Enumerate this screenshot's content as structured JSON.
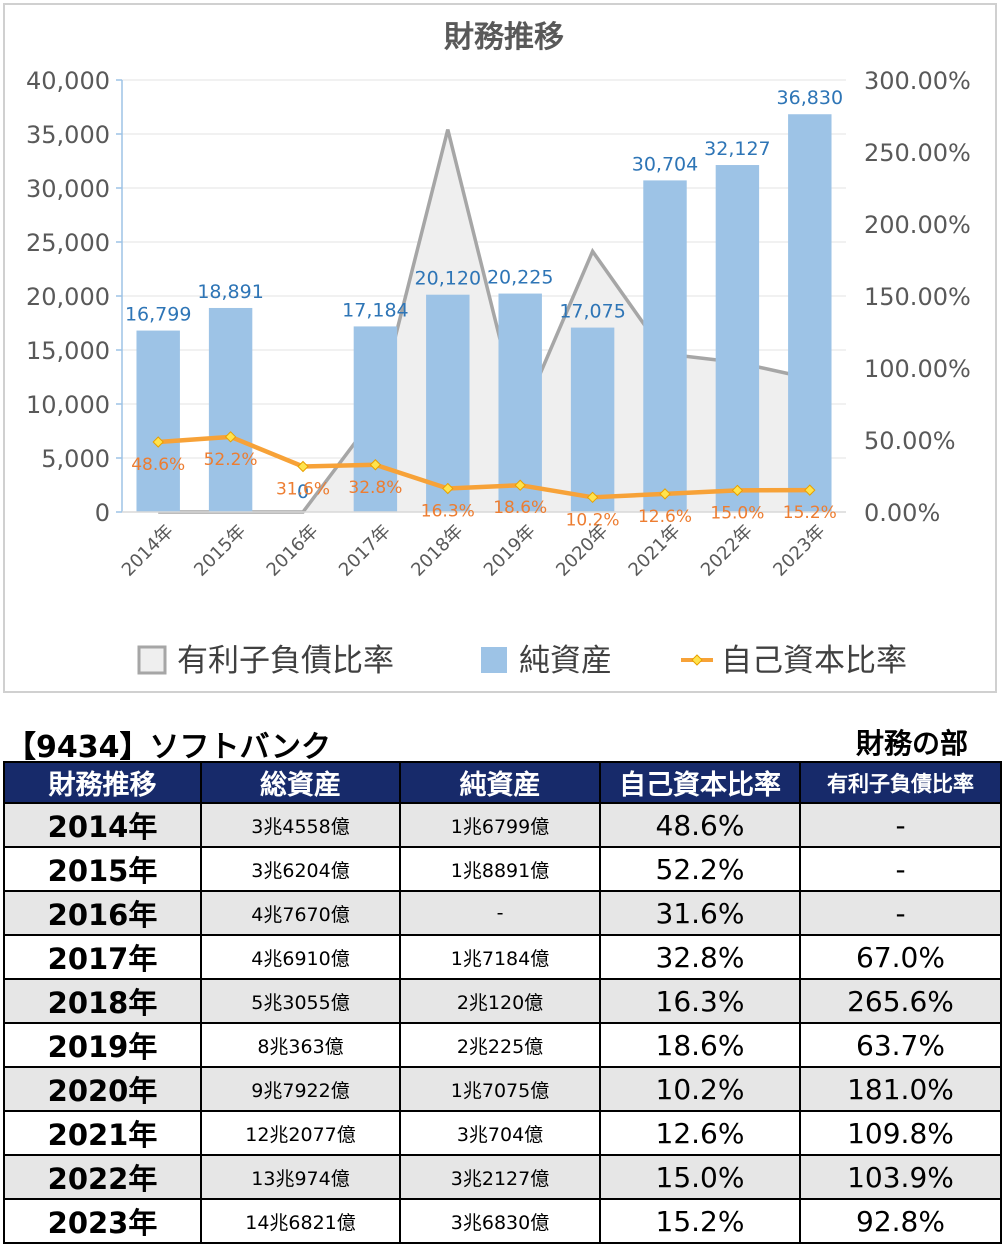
{
  "chart_data": {
    "type": "bar",
    "title": "財務推移",
    "categories": [
      "2014年",
      "2015年",
      "2016年",
      "2017年",
      "2018年",
      "2019年",
      "2020年",
      "2021年",
      "2022年",
      "2023年"
    ],
    "y_left": {
      "ticks": [
        "40,000",
        "35,000",
        "30,000",
        "25,000",
        "20,000",
        "15,000",
        "10,000",
        "5,000",
        "0"
      ],
      "range": [
        0,
        40000
      ]
    },
    "y_right": {
      "ticks": [
        "300.00%",
        "250.00%",
        "200.00%",
        "150.00%",
        "100.00%",
        "50.00%",
        "0.00%"
      ],
      "range": [
        0,
        3.0
      ]
    },
    "series": [
      {
        "name": "有利子負債比率",
        "type": "area",
        "axis": "right",
        "color": "#a6a6a6",
        "fill": "#efefef",
        "values": [
          0,
          0,
          0,
          0.67,
          2.656,
          0.637,
          1.81,
          1.098,
          1.039,
          0.928
        ]
      },
      {
        "name": "純資産",
        "type": "bar",
        "axis": "left",
        "color": "#9dc3e6",
        "values": [
          16799,
          18891,
          0,
          17184,
          20120,
          20225,
          17075,
          30704,
          32127,
          36830
        ],
        "labels": [
          "16,799",
          "18,891",
          "0",
          "17,184",
          "20,120",
          "20,225",
          "17,075",
          "30,704",
          "32,127",
          "36,830"
        ]
      },
      {
        "name": "自己資本比率",
        "type": "line",
        "axis": "right",
        "color": "#f7a238",
        "values": [
          0.486,
          0.522,
          0.316,
          0.328,
          0.163,
          0.186,
          0.102,
          0.126,
          0.15,
          0.152
        ],
        "labels": [
          "48.6%",
          "52.2%",
          "31.6%",
          "32.8%",
          "16.3%",
          "18.6%",
          "10.2%",
          "12.6%",
          "15.0%",
          "15.2%"
        ]
      }
    ],
    "legend_position": "bottom",
    "grid": true
  },
  "header": {
    "company": "【9434】ソフトバンク",
    "section": "財務の部"
  },
  "table": {
    "columns": [
      "財務推移",
      "総資産",
      "純資産",
      "自己資本比率",
      "有利子負債比率"
    ],
    "rows": [
      [
        "2014年",
        "3兆4558億",
        "1兆6799億",
        "48.6%",
        "-"
      ],
      [
        "2015年",
        "3兆6204億",
        "1兆8891億",
        "52.2%",
        "-"
      ],
      [
        "2016年",
        "4兆7670億",
        "-",
        "31.6%",
        "-"
      ],
      [
        "2017年",
        "4兆6910億",
        "1兆7184億",
        "32.8%",
        "67.0%"
      ],
      [
        "2018年",
        "5兆3055億",
        "2兆120億",
        "16.3%",
        "265.6%"
      ],
      [
        "2019年",
        "8兆363億",
        "2兆225億",
        "18.6%",
        "63.7%"
      ],
      [
        "2020年",
        "9兆7922億",
        "1兆7075億",
        "10.2%",
        "181.0%"
      ],
      [
        "2021年",
        "12兆2077億",
        "3兆704億",
        "12.6%",
        "109.8%"
      ],
      [
        "2022年",
        "13兆974億",
        "3兆2127億",
        "15.0%",
        "103.9%"
      ],
      [
        "2023年",
        "14兆6821億",
        "3兆6830億",
        "15.2%",
        "92.8%"
      ]
    ]
  }
}
